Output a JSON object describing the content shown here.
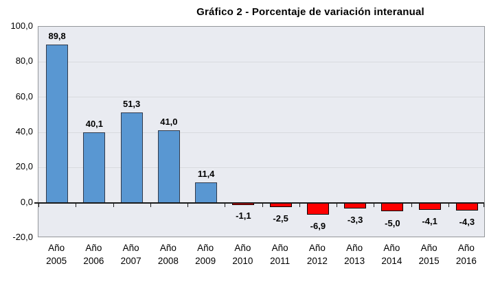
{
  "chart_data": {
    "type": "bar",
    "title": "Gráfico 2 - Porcentaje de variación interanual",
    "categories": [
      "Año 2005",
      "Año 2006",
      "Año 2007",
      "Año 2008",
      "Año 2009",
      "Año 2010",
      "Año 2011",
      "Año 2012",
      "Año 2013",
      "Año 2014",
      "Año 2015",
      "Año 2016"
    ],
    "values": [
      89.8,
      40.1,
      51.3,
      41.0,
      11.4,
      -1.1,
      -2.5,
      -6.9,
      -3.3,
      -5.0,
      -4.1,
      -4.3
    ],
    "value_labels": [
      "89,8",
      "40,1",
      "51,3",
      "41,0",
      "11,4",
      "-1,1",
      "-2,5",
      "-6,9",
      "-3,3",
      "-5,0",
      "-4,1",
      "-4,3"
    ],
    "xlabel": "",
    "ylabel": "",
    "ylim": [
      -20,
      100
    ],
    "y_ticks": [
      {
        "value": 100,
        "label": "100,0"
      },
      {
        "value": 80,
        "label": "80,0"
      },
      {
        "value": 60,
        "label": "60,0"
      },
      {
        "value": 40,
        "label": "40,0"
      },
      {
        "value": 20,
        "label": "20,0"
      },
      {
        "value": 0,
        "label": "0,0"
      },
      {
        "value": -20,
        "label": "-20,0"
      }
    ],
    "grid": true,
    "legend": false,
    "colors": {
      "positive_fill": "#5997d2",
      "positive_border": "#30394a",
      "negative_fill": "#ff0000",
      "negative_border": "#000000",
      "plot_background": "#e9ebf1",
      "gridline": "#d8dade",
      "plot_border": "#939699",
      "axis_line": "#1a1a1a",
      "text": "#000000",
      "background": "#ffffff"
    }
  }
}
